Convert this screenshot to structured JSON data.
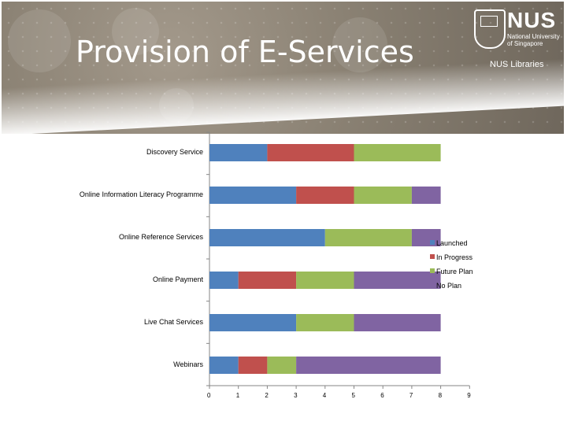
{
  "slide": {
    "title": "Provision of E-Services"
  },
  "logo": {
    "name": "NUS",
    "line1": "National University",
    "line2": "of Singapore",
    "library": "NUS Libraries",
    "crest_icon": "nus-crest-icon"
  },
  "colors": {
    "launched": "#4f81bd",
    "in_progress": "#c0504d",
    "future_plan": "#9bbb59",
    "no_plan": "#8064a2"
  },
  "chart_data": {
    "type": "bar",
    "orientation": "horizontal",
    "stacked": true,
    "categories": [
      "Discovery Service",
      "Online Information Literacy Programme",
      "Online Reference Services",
      "Online Payment",
      "Live Chat Services",
      "Webinars"
    ],
    "series": [
      {
        "name": "Launched",
        "values": [
          2,
          3,
          4,
          1,
          3,
          1
        ]
      },
      {
        "name": "In Progress",
        "values": [
          3,
          2,
          0,
          2,
          0,
          1
        ]
      },
      {
        "name": "Future Plan",
        "values": [
          3,
          2,
          3,
          2,
          2,
          1
        ]
      },
      {
        "name": "No Plan",
        "values": [
          0,
          1,
          1,
          3,
          3,
          5
        ]
      }
    ],
    "xlim": [
      0,
      9
    ],
    "x_ticks": [
      "0",
      "1",
      "2",
      "3",
      "4",
      "5",
      "6",
      "7",
      "8",
      "9"
    ],
    "grid": false,
    "legend_position": "right"
  }
}
